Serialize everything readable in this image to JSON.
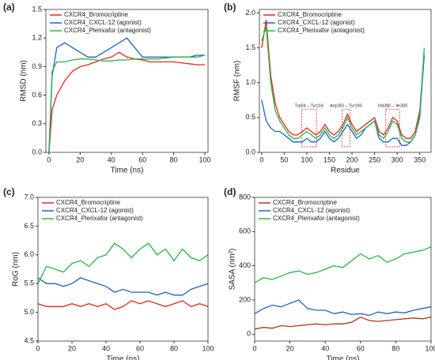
{
  "chart_data": [
    {
      "type": "line",
      "label": "(a)",
      "xlabel": "Time (ns)",
      "ylabel": "RMSD (nm)",
      "xlim": [
        -2,
        102
      ],
      "ylim": [
        0,
        1.5
      ],
      "xticks": [
        0,
        20,
        40,
        60,
        80,
        100
      ],
      "yticks": [
        {
          "value": 0,
          "label": "0.0"
        },
        0.3,
        0.6,
        0.9,
        1.2,
        1.5
      ],
      "x": [
        0,
        2,
        5,
        10,
        15,
        20,
        25,
        30,
        35,
        40,
        45,
        50,
        55,
        60,
        65,
        70,
        75,
        80,
        85,
        90,
        95,
        100
      ],
      "series": [
        {
          "name": "CXCR4_Bromocriptine",
          "color": "#e3261f",
          "values": [
            0,
            0.45,
            0.6,
            0.75,
            0.85,
            0.9,
            0.92,
            0.95,
            0.98,
            1.0,
            1.05,
            1.0,
            0.98,
            0.97,
            0.95,
            0.95,
            0.95,
            0.95,
            0.94,
            0.93,
            0.92,
            0.92
          ]
        },
        {
          "name": "CXCR4_CXCL-12 (agonist)",
          "color": "#1f63c4",
          "values": [
            0,
            0.8,
            1.1,
            1.15,
            1.1,
            1.05,
            1.0,
            1.0,
            1.05,
            1.1,
            1.15,
            1.2,
            1.1,
            1.0,
            1.0,
            1.0,
            1.0,
            1.0,
            1.0,
            1.0,
            1.02,
            1.02
          ]
        },
        {
          "name": "CXCR4_Plerixafor (antagonist)",
          "color": "#2bb546",
          "values": [
            0,
            0.85,
            0.95,
            0.95,
            0.97,
            0.98,
            0.98,
            0.97,
            0.96,
            0.96,
            0.97,
            0.97,
            0.98,
            0.98,
            0.98,
            0.98,
            0.99,
            1.0,
            1.0,
            1.0,
            1.0,
            1.02
          ]
        }
      ]
    },
    {
      "type": "line",
      "label": "(b)",
      "xlabel": "Residue",
      "ylabel": "RMSF (nm)",
      "xlim": [
        -5,
        375
      ],
      "ylim": [
        0,
        2.05
      ],
      "xticks": [
        0,
        50,
        100,
        150,
        200,
        250,
        300,
        350
      ],
      "yticks": [
        {
          "value": 0,
          "label": "0.0"
        },
        0.5,
        {
          "value": 1,
          "label": "1.0"
        },
        1.5,
        {
          "value": 2,
          "label": "2.0"
        }
      ],
      "annotations": [
        "Trp94 – Tyr116",
        "Arg183 – Tyr190",
        "Val280 – Ile300"
      ],
      "x": [
        0,
        10,
        20,
        30,
        40,
        50,
        60,
        70,
        80,
        90,
        100,
        110,
        120,
        130,
        140,
        150,
        160,
        170,
        180,
        190,
        200,
        210,
        220,
        230,
        240,
        250,
        260,
        270,
        280,
        290,
        300,
        310,
        320,
        330,
        340,
        350,
        360
      ],
      "series": [
        {
          "name": "CXCR4_Bromocriptine",
          "color": "#e3261f",
          "values": [
            1.5,
            1.9,
            1.1,
            0.7,
            0.5,
            0.4,
            0.3,
            0.25,
            0.25,
            0.3,
            0.35,
            0.3,
            0.25,
            0.3,
            0.4,
            0.3,
            0.25,
            0.3,
            0.4,
            0.55,
            0.4,
            0.3,
            0.35,
            0.4,
            0.45,
            0.5,
            0.3,
            0.25,
            0.35,
            0.5,
            0.45,
            0.25,
            0.2,
            0.2,
            0.3,
            0.6,
            1.4
          ]
        },
        {
          "name": "CXCR4_CXCL-12 (agonist)",
          "color": "#1f63c4",
          "values": [
            0.75,
            0.45,
            0.35,
            0.3,
            0.3,
            0.25,
            0.2,
            0.15,
            0.15,
            0.15,
            0.2,
            0.15,
            0.15,
            0.2,
            0.3,
            0.2,
            0.15,
            0.2,
            0.3,
            0.4,
            0.3,
            0.2,
            0.25,
            0.35,
            0.4,
            0.45,
            0.2,
            0.15,
            0.15,
            0.2,
            0.2,
            0.1,
            0.1,
            0.15,
            0.25,
            0.5,
            1.4
          ]
        },
        {
          "name": "CXCR4_Plerixafor (antagonist)",
          "color": "#2bb546",
          "values": [
            1.6,
            1.8,
            1.0,
            0.6,
            0.45,
            0.35,
            0.25,
            0.2,
            0.2,
            0.25,
            0.3,
            0.25,
            0.2,
            0.25,
            0.35,
            0.25,
            0.2,
            0.25,
            0.35,
            0.5,
            0.35,
            0.25,
            0.3,
            0.35,
            0.4,
            0.45,
            0.25,
            0.2,
            0.3,
            0.45,
            0.4,
            0.2,
            0.15,
            0.15,
            0.25,
            0.55,
            1.5
          ]
        }
      ]
    },
    {
      "type": "line",
      "label": "(c)",
      "xlabel": "Time (ns)",
      "ylabel": "RoG (nm)",
      "xlim": [
        0,
        100
      ],
      "ylim": [
        4.5,
        7.0
      ],
      "xticks": [
        0,
        20,
        40,
        60,
        80,
        100
      ],
      "yticks": [
        4.5,
        {
          "value": 5,
          "label": "5.0"
        },
        5.5,
        {
          "value": 6,
          "label": "6.0"
        },
        6.5,
        {
          "value": 7,
          "label": "7.0"
        }
      ],
      "x": [
        0,
        5,
        10,
        15,
        20,
        25,
        30,
        35,
        40,
        45,
        50,
        55,
        60,
        65,
        70,
        75,
        80,
        85,
        90,
        95,
        100
      ],
      "series": [
        {
          "name": "CXCR4_Bromocriptine",
          "color": "#e3261f",
          "values": [
            5.15,
            5.1,
            5.1,
            5.1,
            5.15,
            5.1,
            5.15,
            5.1,
            5.15,
            5.05,
            5.1,
            5.2,
            5.15,
            5.2,
            5.15,
            5.1,
            5.15,
            5.2,
            5.1,
            5.15,
            5.1
          ]
        },
        {
          "name": "CXCR4_CXCL-12 (agonist)",
          "color": "#1f63c4",
          "values": [
            5.6,
            5.5,
            5.5,
            5.45,
            5.5,
            5.6,
            5.55,
            5.5,
            5.45,
            5.35,
            5.4,
            5.35,
            5.35,
            5.35,
            5.3,
            5.35,
            5.3,
            5.3,
            5.4,
            5.45,
            5.5
          ]
        },
        {
          "name": "CXCR4_Plerixafor (antagonist)",
          "color": "#2bb546",
          "values": [
            5.5,
            5.8,
            5.75,
            5.7,
            5.85,
            5.9,
            5.8,
            5.95,
            6.0,
            6.2,
            6.1,
            5.95,
            6.1,
            6.2,
            6.0,
            6.1,
            5.9,
            6.1,
            5.95,
            5.9,
            6.0
          ]
        }
      ]
    },
    {
      "type": "line",
      "label": "(d)",
      "xlabel": "Time (ns)",
      "ylabel": "SASA (nm²)",
      "xlim": [
        0,
        100
      ],
      "ylim": [
        -40,
        800
      ],
      "xticks": [
        0,
        20,
        40,
        60,
        80,
        100
      ],
      "yticks": [
        0,
        200,
        400,
        600,
        800
      ],
      "x": [
        0,
        5,
        10,
        15,
        20,
        25,
        30,
        35,
        40,
        45,
        50,
        55,
        60,
        65,
        70,
        75,
        80,
        85,
        90,
        95,
        100
      ],
      "series": [
        {
          "name": "CXCR4_Bromocriptine",
          "color": "#b2361c",
          "values": [
            30,
            40,
            35,
            50,
            45,
            50,
            55,
            60,
            55,
            60,
            60,
            70,
            100,
            80,
            75,
            80,
            85,
            90,
            95,
            90,
            100
          ]
        },
        {
          "name": "CXCR4_CXCL-12 (agonist)",
          "color": "#1f63c4",
          "values": [
            120,
            150,
            170,
            160,
            180,
            200,
            150,
            140,
            140,
            120,
            130,
            115,
            120,
            110,
            130,
            120,
            130,
            125,
            140,
            150,
            160
          ]
        },
        {
          "name": "CXCR4_Plerixafor (antagonist)",
          "color": "#2bb546",
          "values": [
            300,
            330,
            320,
            340,
            360,
            370,
            350,
            360,
            380,
            400,
            390,
            430,
            470,
            440,
            460,
            420,
            440,
            470,
            480,
            490,
            510
          ]
        }
      ]
    }
  ]
}
